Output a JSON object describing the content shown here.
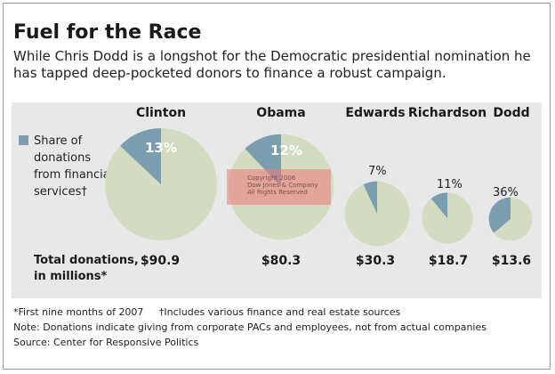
{
  "title": "Fuel for the Race",
  "subtitle": "While Chris Dodd is a longshot for the Democratic presidential nomination he has tapped deep-pocketed donors to finance a robust campaign.",
  "legend": {
    "label": "Share of donations from financial services†",
    "color": "#7b9db0"
  },
  "totals_label": "Total donations, in millions*",
  "colors": {
    "slice": "#7b9db0",
    "rest": "#d3dcc0",
    "band": "#e8e8e8"
  },
  "chart_data": {
    "type": "pie",
    "title": "Fuel for the Race",
    "candidates": [
      {
        "name": "Clinton",
        "financial_share": 13,
        "share_label": "13%",
        "total": 90.9,
        "total_label": "$90.9"
      },
      {
        "name": "Obama",
        "financial_share": 12,
        "share_label": "12%",
        "total": 80.3,
        "total_label": "$80.3"
      },
      {
        "name": "Edwards",
        "financial_share": 7,
        "share_label": "7%",
        "total": 30.3,
        "total_label": "$30.3"
      },
      {
        "name": "Richardson",
        "financial_share": 11,
        "share_label": "11%",
        "total": 18.7,
        "total_label": "$18.7"
      },
      {
        "name": "Dodd",
        "financial_share": 36,
        "share_label": "36%",
        "total": 13.6,
        "total_label": "$13.6"
      }
    ]
  },
  "footnotes": {
    "line1": "*First nine months of 2007     †Includes various finance and real estate sources",
    "line2": "Note: Donations indicate giving from corporate PACs and employees, not from actual companies",
    "line3": "Source: Center for Responsive Politics"
  },
  "watermark": {
    "line1": "Copyright 2006",
    "line2": "Dow Jones & Company",
    "line3": "All Rights Reserved"
  }
}
